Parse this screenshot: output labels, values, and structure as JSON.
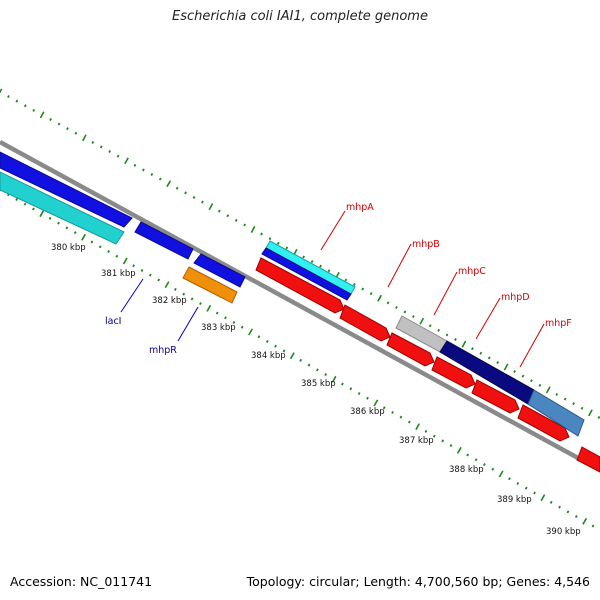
{
  "title": "Escherichia coli IAI1, complete genome",
  "footer": {
    "accession": "Accession: NC_011741",
    "summary": "Topology: circular; Length: 4,700,560 bp; Genes: 4,546"
  },
  "colors": {
    "backbone": "#8a8a8a",
    "tick_marks": "#1a8a1a",
    "forward_label": "#d40000",
    "reverse_label": "#00008b",
    "blue": "#1010e0",
    "cyan": "#22d0d0",
    "orange": "#f0900a",
    "red": "#f01010",
    "grey": "#c0c0c0",
    "navy": "#0a0a80",
    "steel": "#4a86c0",
    "bright_cyan": "#30f0f0"
  },
  "scale_labels": [
    "380 kbp",
    "381 kbp",
    "382 kbp",
    "383 kbp",
    "384 kbp",
    "385 kbp",
    "386 kbp",
    "387 kbp",
    "388 kbp",
    "389 kbp",
    "390 kbp"
  ],
  "gene_labels": {
    "forward": [
      "mhpA",
      "mhpB",
      "mhpC",
      "mhpD",
      "mhpF"
    ],
    "reverse": [
      "lacI",
      "mhpR"
    ]
  }
}
